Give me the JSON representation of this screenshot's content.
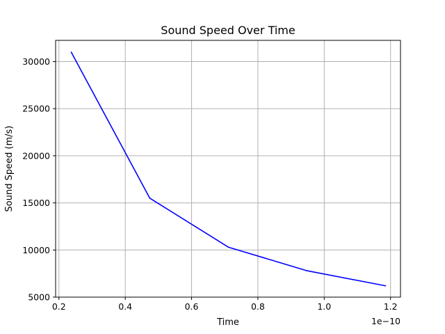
{
  "chart_data": {
    "type": "line",
    "title": "Sound Speed Over Time",
    "xlabel": "Time",
    "ylabel": "Sound Speed (m/s)",
    "x_offset_label": "1e−10",
    "x_scale": 1e-10,
    "xlim": [
      0.19,
      1.23
    ],
    "ylim": [
      5000,
      32250
    ],
    "x_ticks": [
      0.2,
      0.4,
      0.6,
      0.8,
      1.0,
      1.2
    ],
    "x_tick_labels": [
      "0.2",
      "0.4",
      "0.6",
      "0.8",
      "1.0",
      "1.2"
    ],
    "y_ticks": [
      5000,
      10000,
      15000,
      20000,
      25000,
      30000
    ],
    "y_tick_labels": [
      "5000",
      "10000",
      "15000",
      "20000",
      "25000",
      "30000"
    ],
    "grid": true,
    "series": [
      {
        "color": "#0000ff",
        "x": [
          0.237,
          0.474,
          0.711,
          0.948,
          1.185
        ],
        "y": [
          31000,
          15500,
          10300,
          7800,
          6200
        ]
      }
    ]
  }
}
